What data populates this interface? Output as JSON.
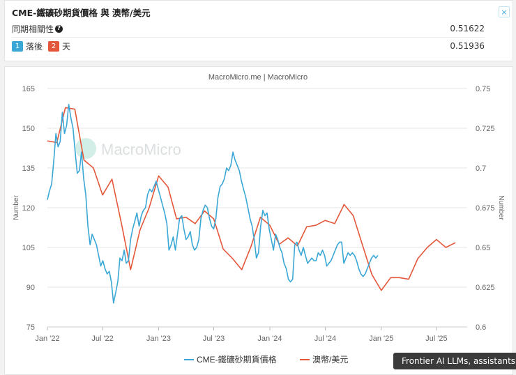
{
  "header": {
    "title": "CME-鐵礦砂期貨價格 與 澳幣/美元",
    "close_label": "×"
  },
  "stats": {
    "corr_label": "同期相關性",
    "corr_help_icon": "question-icon",
    "corr_value": "0.51622",
    "lag_badge1": "1",
    "lag_text1": "落後",
    "lag_badge2": "2",
    "lag_text2": "天",
    "lag_value": "0.51936"
  },
  "tooltip": {
    "text": "Frontier AI LLMs, assistants"
  },
  "chart_data": {
    "type": "line",
    "source": "MacroMicro.me | MacroMicro",
    "watermark": "MacroMicro",
    "xlabel": "",
    "ylabel_left": "Number",
    "ylabel_right": "Number",
    "x_ticks": [
      "Jan '22",
      "Jul '22",
      "Jan '23",
      "Jul '23",
      "Jan '24",
      "Jul '24",
      "Jan '25",
      "Jul '25"
    ],
    "ylim_left": [
      75,
      165
    ],
    "yticks_left": [
      75,
      90,
      105,
      120,
      135,
      150,
      165
    ],
    "ylim_right": [
      0.6,
      0.75
    ],
    "yticks_right": [
      "0.6",
      "0.625",
      "0.65",
      "0.675",
      "0.7",
      "0.725",
      "0.75"
    ],
    "grid": true,
    "legend_position": "bottom",
    "series": [
      {
        "name": "CME-鐵礦砂期貨價格",
        "axis": "left",
        "color": "#3aa7d6",
        "points": [
          [
            "2022-01-01",
            123
          ],
          [
            "2022-01-07",
            126
          ],
          [
            "2022-01-15",
            129
          ],
          [
            "2022-01-22",
            138
          ],
          [
            "2022-01-29",
            148
          ],
          [
            "2022-02-05",
            143
          ],
          [
            "2022-02-12",
            145
          ],
          [
            "2022-02-19",
            156
          ],
          [
            "2022-02-26",
            148
          ],
          [
            "2022-03-05",
            151
          ],
          [
            "2022-03-12",
            159
          ],
          [
            "2022-03-19",
            154
          ],
          [
            "2022-03-26",
            150
          ],
          [
            "2022-04-02",
            141
          ],
          [
            "2022-04-09",
            133
          ],
          [
            "2022-04-16",
            134
          ],
          [
            "2022-04-23",
            141
          ],
          [
            "2022-04-30",
            131
          ],
          [
            "2022-05-07",
            125
          ],
          [
            "2022-05-14",
            113
          ],
          [
            "2022-05-21",
            106
          ],
          [
            "2022-05-28",
            110
          ],
          [
            "2022-06-04",
            108
          ],
          [
            "2022-06-11",
            106
          ],
          [
            "2022-06-18",
            102
          ],
          [
            "2022-06-25",
            98
          ],
          [
            "2022-07-02",
            100
          ],
          [
            "2022-07-09",
            97
          ],
          [
            "2022-07-16",
            95
          ],
          [
            "2022-07-23",
            96
          ],
          [
            "2022-07-30",
            92
          ],
          [
            "2022-08-06",
            84
          ],
          [
            "2022-08-13",
            88
          ],
          [
            "2022-08-20",
            92
          ],
          [
            "2022-08-27",
            101
          ],
          [
            "2022-09-03",
            100
          ],
          [
            "2022-09-10",
            104
          ],
          [
            "2022-09-17",
            99
          ],
          [
            "2022-09-24",
            100
          ],
          [
            "2022-10-01",
            108
          ],
          [
            "2022-10-08",
            112
          ],
          [
            "2022-10-15",
            115
          ],
          [
            "2022-10-22",
            118
          ],
          [
            "2022-10-29",
            113
          ],
          [
            "2022-11-05",
            117
          ],
          [
            "2022-11-12",
            119
          ],
          [
            "2022-11-19",
            120
          ],
          [
            "2022-11-26",
            125
          ],
          [
            "2022-12-03",
            127
          ],
          [
            "2022-12-10",
            126
          ],
          [
            "2022-12-17",
            128
          ],
          [
            "2022-12-24",
            130
          ],
          [
            "2022-12-31",
            127
          ],
          [
            "2023-01-07",
            124
          ],
          [
            "2023-01-14",
            121
          ],
          [
            "2023-01-21",
            118
          ],
          [
            "2023-01-28",
            114
          ],
          [
            "2023-02-04",
            104
          ],
          [
            "2023-02-11",
            106
          ],
          [
            "2023-02-18",
            109
          ],
          [
            "2023-02-25",
            104
          ],
          [
            "2023-03-04",
            110
          ],
          [
            "2023-03-11",
            116
          ],
          [
            "2023-03-18",
            117
          ],
          [
            "2023-03-25",
            112
          ],
          [
            "2023-04-01",
            108
          ],
          [
            "2023-04-08",
            109
          ],
          [
            "2023-04-15",
            111
          ],
          [
            "2023-04-22",
            106
          ],
          [
            "2023-04-29",
            104
          ],
          [
            "2023-05-06",
            105
          ],
          [
            "2023-05-13",
            108
          ],
          [
            "2023-05-20",
            116
          ],
          [
            "2023-05-27",
            119
          ],
          [
            "2023-06-03",
            121
          ],
          [
            "2023-06-10",
            120
          ],
          [
            "2023-06-17",
            116
          ],
          [
            "2023-06-24",
            113
          ],
          [
            "2023-07-01",
            112
          ],
          [
            "2023-07-08",
            116
          ],
          [
            "2023-07-15",
            124
          ],
          [
            "2023-07-22",
            128
          ],
          [
            "2023-07-29",
            129
          ],
          [
            "2023-08-05",
            131
          ],
          [
            "2023-08-12",
            135
          ],
          [
            "2023-08-19",
            134
          ],
          [
            "2023-08-26",
            136
          ],
          [
            "2023-09-02",
            141
          ],
          [
            "2023-09-09",
            138
          ],
          [
            "2023-09-16",
            136
          ],
          [
            "2023-09-23",
            134
          ],
          [
            "2023-09-30",
            130
          ],
          [
            "2023-10-07",
            127
          ],
          [
            "2023-10-14",
            124
          ],
          [
            "2023-10-21",
            120
          ],
          [
            "2023-10-28",
            116
          ],
          [
            "2023-11-04",
            113
          ],
          [
            "2023-11-11",
            108
          ],
          [
            "2023-11-18",
            101
          ],
          [
            "2023-11-25",
            103
          ],
          [
            "2023-12-02",
            113
          ],
          [
            "2023-12-09",
            119
          ],
          [
            "2023-12-16",
            117
          ],
          [
            "2023-12-23",
            118
          ],
          [
            "2023-12-30",
            112
          ],
          [
            "2024-01-06",
            108
          ],
          [
            "2024-01-13",
            104
          ],
          [
            "2024-01-20",
            110
          ],
          [
            "2024-01-27",
            108
          ],
          [
            "2024-02-03",
            105
          ],
          [
            "2024-02-10",
            103
          ],
          [
            "2024-02-17",
            99
          ],
          [
            "2024-02-24",
            97
          ],
          [
            "2024-03-02",
            93
          ],
          [
            "2024-03-09",
            92
          ],
          [
            "2024-03-16",
            93
          ],
          [
            "2024-03-23",
            106
          ],
          [
            "2024-03-30",
            107
          ],
          [
            "2024-04-06",
            104
          ],
          [
            "2024-04-13",
            102
          ],
          [
            "2024-04-20",
            105
          ],
          [
            "2024-04-27",
            102
          ],
          [
            "2024-05-04",
            99
          ],
          [
            "2024-05-11",
            100
          ],
          [
            "2024-05-18",
            101
          ],
          [
            "2024-05-25",
            100
          ],
          [
            "2024-06-01",
            100
          ],
          [
            "2024-06-08",
            103
          ],
          [
            "2024-06-15",
            102
          ],
          [
            "2024-06-22",
            104
          ],
          [
            "2024-06-29",
            102
          ],
          [
            "2024-07-06",
            98
          ],
          [
            "2024-07-13",
            99
          ],
          [
            "2024-07-20",
            100
          ],
          [
            "2024-07-27",
            102
          ],
          [
            "2024-08-03",
            104
          ],
          [
            "2024-08-10",
            106
          ],
          [
            "2024-08-17",
            107
          ],
          [
            "2024-08-24",
            107
          ],
          [
            "2024-08-31",
            99
          ],
          [
            "2024-09-07",
            101
          ],
          [
            "2024-09-14",
            103
          ],
          [
            "2024-09-21",
            102
          ],
          [
            "2024-09-28",
            103
          ],
          [
            "2024-10-05",
            102
          ],
          [
            "2024-10-12",
            100
          ],
          [
            "2024-10-19",
            97
          ],
          [
            "2024-10-26",
            95
          ],
          [
            "2024-11-02",
            94
          ],
          [
            "2024-11-09",
            95
          ],
          [
            "2024-11-16",
            97
          ],
          [
            "2024-11-23",
            99
          ],
          [
            "2024-11-30",
            101
          ],
          [
            "2024-12-07",
            102
          ],
          [
            "2024-12-14",
            101
          ],
          [
            "2024-12-21",
            102
          ]
        ]
      },
      {
        "name": "澳幣/美元",
        "axis": "right",
        "color": "#e4573a",
        "points": [
          [
            "2022-01-01",
            0.717
          ],
          [
            "2022-02-01",
            0.716
          ],
          [
            "2022-03-01",
            0.738
          ],
          [
            "2022-04-01",
            0.737
          ],
          [
            "2022-05-01",
            0.705
          ],
          [
            "2022-06-01",
            0.7
          ],
          [
            "2022-07-01",
            0.683
          ],
          [
            "2022-08-01",
            0.693
          ],
          [
            "2022-09-01",
            0.665
          ],
          [
            "2022-10-01",
            0.636
          ],
          [
            "2022-11-01",
            0.661
          ],
          [
            "2022-12-01",
            0.675
          ],
          [
            "2023-01-01",
            0.695
          ],
          [
            "2023-02-01",
            0.688
          ],
          [
            "2023-03-01",
            0.668
          ],
          [
            "2023-04-01",
            0.669
          ],
          [
            "2023-05-01",
            0.665
          ],
          [
            "2023-06-01",
            0.673
          ],
          [
            "2023-07-01",
            0.668
          ],
          [
            "2023-08-01",
            0.649
          ],
          [
            "2023-09-01",
            0.643
          ],
          [
            "2023-10-01",
            0.636
          ],
          [
            "2023-11-01",
            0.651
          ],
          [
            "2023-12-01",
            0.669
          ],
          [
            "2024-01-01",
            0.664
          ],
          [
            "2024-02-01",
            0.652
          ],
          [
            "2024-03-01",
            0.656
          ],
          [
            "2024-04-01",
            0.651
          ],
          [
            "2024-05-01",
            0.663
          ],
          [
            "2024-06-01",
            0.664
          ],
          [
            "2024-07-01",
            0.667
          ],
          [
            "2024-08-01",
            0.665
          ],
          [
            "2024-09-01",
            0.677
          ],
          [
            "2024-10-01",
            0.67
          ],
          [
            "2024-11-01",
            0.651
          ],
          [
            "2024-12-01",
            0.633
          ],
          [
            "2025-01-01",
            0.623
          ],
          [
            "2025-02-01",
            0.631
          ],
          [
            "2025-03-01",
            0.631
          ],
          [
            "2025-04-01",
            0.63
          ],
          [
            "2025-05-01",
            0.643
          ],
          [
            "2025-06-01",
            0.65
          ],
          [
            "2025-07-01",
            0.655
          ],
          [
            "2025-08-01",
            0.65
          ],
          [
            "2025-09-01",
            0.653
          ]
        ]
      }
    ]
  }
}
